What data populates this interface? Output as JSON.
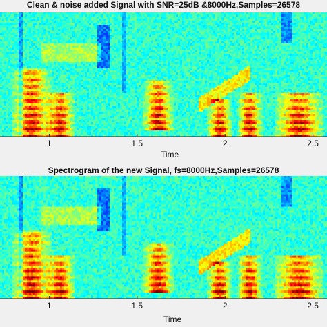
{
  "chart_data": [
    {
      "type": "heatmap",
      "title": "Clean & noise added Signal with SNR=25dB &8000Hz,Samples=26578",
      "xlabel": "Time",
      "ylabel": "",
      "x_ticks": [
        "1",
        "1.5",
        "2",
        "2.5"
      ],
      "x_tick_values": [
        1,
        1.5,
        2,
        2.5
      ],
      "xlim": [
        0.72,
        2.58
      ],
      "colormap": "jet",
      "grid": false
    },
    {
      "type": "heatmap",
      "title": "Spectrogram of the new Signal, fs=8000Hz,Samples=26578",
      "xlabel": "Time",
      "ylabel": "",
      "x_ticks": [
        "1",
        "1.5",
        "2",
        "2.5"
      ],
      "x_tick_values": [
        1,
        1.5,
        2,
        2.5
      ],
      "xlim": [
        0.72,
        2.58
      ],
      "colormap": "jet",
      "grid": false
    }
  ]
}
